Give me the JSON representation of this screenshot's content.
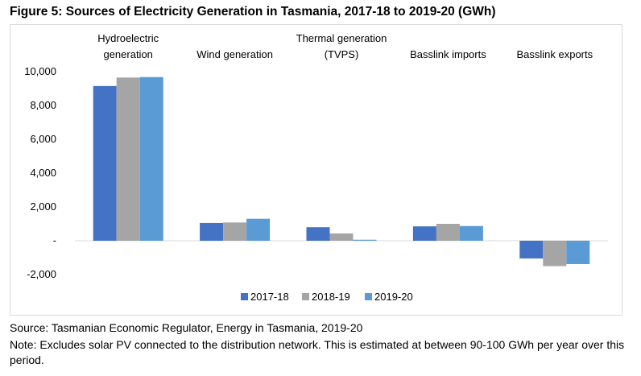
{
  "figure": {
    "title": "Figure 5: Sources of Electricity Generation in Tasmania, 2017-18 to 2019-20 (GWh)",
    "source": "Source: Tasmanian Economic Regulator, Energy in Tasmania, 2019-20",
    "note": "Note: Excludes solar PV connected to the distribution network. This is estimated at between 90-100 GWh per year over this period."
  },
  "chart_data": {
    "type": "bar",
    "title": "Figure 5: Sources of Electricity Generation in Tasmania, 2017-18 to 2019-20 (GWh)",
    "categories": [
      [
        "Hydroelectric",
        "generation"
      ],
      [
        "Wind generation"
      ],
      [
        "Thermal generation",
        "(TVPS)"
      ],
      [
        "Basslink imports"
      ],
      [
        "Basslink exports"
      ]
    ],
    "series": [
      {
        "name": "2017-18",
        "color": "#4472c4",
        "values": [
          9150,
          1050,
          800,
          850,
          -1050
        ]
      },
      {
        "name": "2018-19",
        "color": "#a5a5a5",
        "values": [
          9650,
          1080,
          430,
          1000,
          -1500
        ]
      },
      {
        "name": "2019-20",
        "color": "#5b9bd5",
        "values": [
          9680,
          1300,
          60,
          870,
          -1380
        ]
      }
    ],
    "ylim": [
      -2000,
      10000
    ],
    "yticks": [
      {
        "value": 10000,
        "label": "10,000"
      },
      {
        "value": 8000,
        "label": "8,000"
      },
      {
        "value": 6000,
        "label": "6,000"
      },
      {
        "value": 4000,
        "label": "4,000"
      },
      {
        "value": 2000,
        "label": "2,000"
      },
      {
        "value": 0,
        "label": "-"
      },
      {
        "value": -2000,
        "label": "-2,000"
      }
    ],
    "grid": false,
    "legend": "bottom"
  }
}
